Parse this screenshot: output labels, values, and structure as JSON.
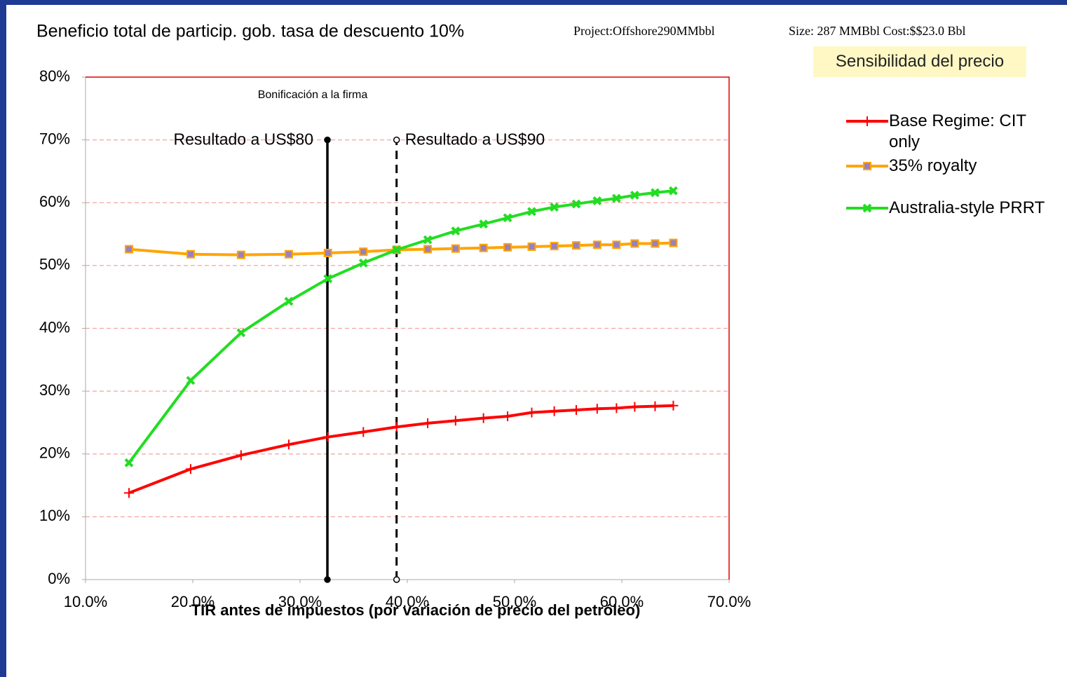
{
  "chart_data": {
    "type": "line",
    "title": "Beneficio total de particip. gob. tasa de descuento 10%",
    "subtitle": [
      "Project:Offshore290MMbbl",
      "Size: 287 MMBbl Cost:$$23.0 Bbl"
    ],
    "box_label": "Sensibilidad del precio",
    "x_label": "TIR antes de impuestos (por variación de precio del petróleo)",
    "x": [
      14.05,
      19.8,
      24.5,
      28.95,
      32.6,
      35.9,
      39.0,
      41.9,
      44.5,
      47.1,
      49.35,
      51.6,
      53.7,
      55.75,
      57.7,
      59.5,
      61.2,
      63.1,
      64.8
    ],
    "series": [
      {
        "name": "Base Regime: CIT only",
        "color": "#ff0000",
        "marker": "plus",
        "values": [
          13.8,
          17.6,
          19.8,
          21.5,
          22.7,
          23.5,
          24.3,
          24.9,
          25.3,
          25.7,
          26.0,
          26.6,
          26.8,
          27.0,
          27.2,
          27.3,
          27.5,
          27.6,
          27.7
        ]
      },
      {
        "name": "35% royalty",
        "color": "#ffa500",
        "marker": "square",
        "marker_fill": "#9b7fc0",
        "values": [
          52.6,
          51.8,
          51.7,
          51.8,
          52.0,
          52.2,
          52.5,
          52.6,
          52.7,
          52.8,
          52.9,
          53.0,
          53.1,
          53.2,
          53.3,
          53.3,
          53.5,
          53.5,
          53.6
        ]
      },
      {
        "name": "Australia-style PRRT",
        "color": "#22dd22",
        "marker": "x",
        "values": [
          18.6,
          31.7,
          39.3,
          44.3,
          47.9,
          50.4,
          52.5,
          54.1,
          55.5,
          56.6,
          57.6,
          58.6,
          59.3,
          59.8,
          60.3,
          60.7,
          61.2,
          61.6,
          61.9
        ]
      }
    ],
    "reference_lines": [
      {
        "x": 32.55,
        "y": [
          0,
          70
        ],
        "label": "Resultado a US$80",
        "style": "solid"
      },
      {
        "x": 39.0,
        "y": [
          0,
          70
        ],
        "label": "Resultado a US$90",
        "style": "dashed"
      }
    ],
    "annotation": "Bonificación a la firma",
    "xlim": [
      10,
      70
    ],
    "xticks": [
      {
        "value": 10,
        "label": "10.0%"
      },
      {
        "value": 20,
        "label": "20.0%"
      },
      {
        "value": 30,
        "label": "30.0%"
      },
      {
        "value": 40,
        "label": "40.0%"
      },
      {
        "value": 50,
        "label": "50.0%"
      },
      {
        "value": 60,
        "label": "60.0%"
      },
      {
        "value": 70,
        "label": "70.0%"
      }
    ],
    "ylim": [
      0,
      80
    ],
    "yticks": [
      {
        "value": 0,
        "label": "0%"
      },
      {
        "value": 10,
        "label": "10%"
      },
      {
        "value": 20,
        "label": "20%"
      },
      {
        "value": 30,
        "label": "30%"
      },
      {
        "value": 40,
        "label": "40%"
      },
      {
        "value": 50,
        "label": "50%"
      },
      {
        "value": 60,
        "label": "60%"
      },
      {
        "value": 70,
        "label": "70%"
      },
      {
        "value": 80,
        "label": "80%"
      }
    ],
    "grid": true,
    "legend": "right"
  }
}
